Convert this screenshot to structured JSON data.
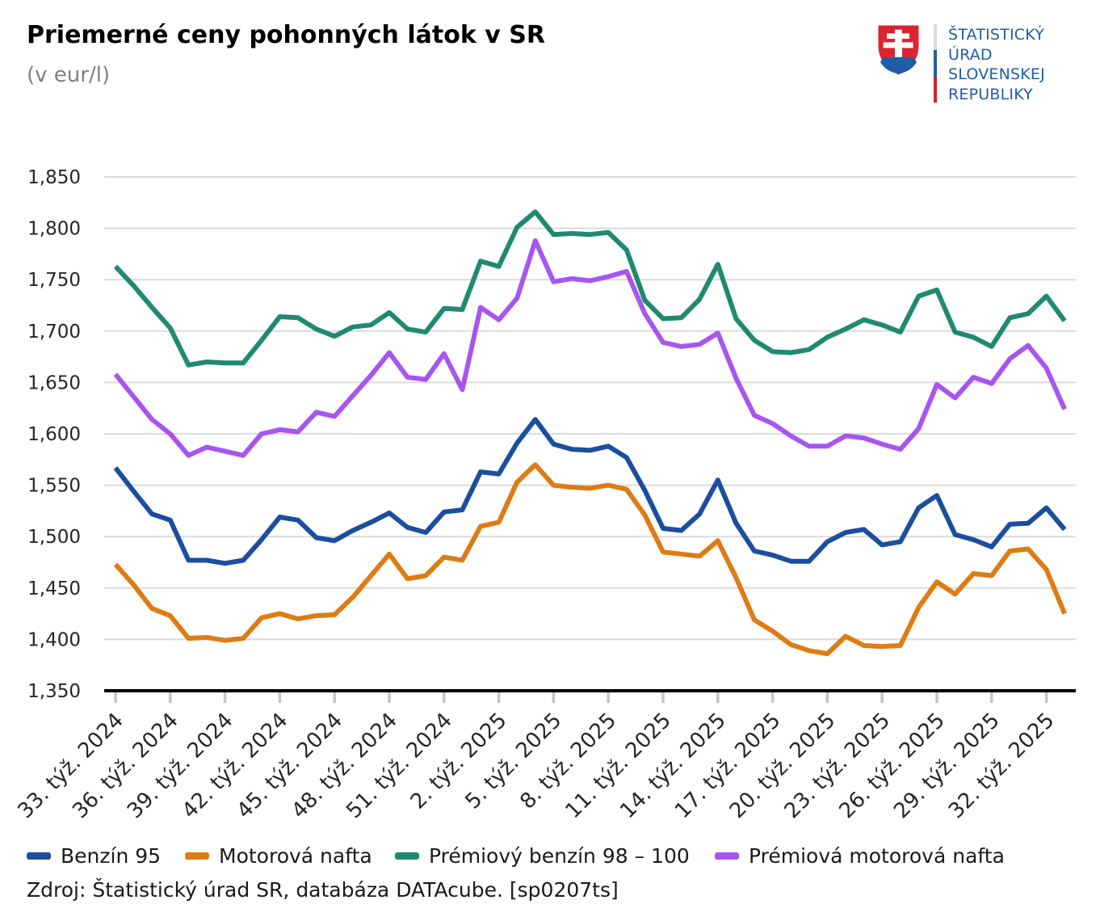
{
  "header": {
    "title": "Priemerné ceny pohonných látok v SR",
    "subtitle": "(v eur/l)"
  },
  "logo": {
    "org_lines": [
      "ŠTATISTICKÝ",
      "ÚRAD",
      "SLOVENSKEJ",
      "REPUBLIKY"
    ],
    "text_color": "#1F5CA9",
    "shield_red": "#DC2430",
    "shield_blue": "#1F5CA8",
    "flag_bar_colors": [
      "#D9D9D9",
      "#2060A8",
      "#D5212E"
    ]
  },
  "chart_data": {
    "type": "line",
    "title": "Priemerné ceny pohonných látok v SR",
    "unit": "(v eur/l)",
    "ylim": [
      1.35,
      1.85
    ],
    "y_tick_step": 0.05,
    "y_tick_labels": [
      "1,350",
      "1,400",
      "1,450",
      "1,500",
      "1,550",
      "1,600",
      "1,650",
      "1,700",
      "1,750",
      "1,800",
      "1,850"
    ],
    "x_tick_every": 3,
    "n_points": 53,
    "x_tick_labels": [
      "33. týž. 2024",
      "36. týž. 2024",
      "39. týž. 2024",
      "42. týž. 2024",
      "45. týž. 2024",
      "48. týž. 2024",
      "51. týž. 2024",
      "2. týž. 2025",
      "5. týž. 2025",
      "8. týž. 2025",
      "11. týž. 2025",
      "14. týž. 2025",
      "17. týž. 2025",
      "20. týž. 2025",
      "23. týž. 2025",
      "26. týž. 2025",
      "29. týž. 2025",
      "32. týž. 2025"
    ],
    "grid": "horizontal",
    "legend_position": "bottom",
    "series": [
      {
        "name": "Benzín 95",
        "color": "#1B4E9E",
        "values": [
          1.567,
          1.544,
          1.522,
          1.516,
          1.477,
          1.477,
          1.474,
          1.477,
          1.497,
          1.519,
          1.516,
          1.499,
          1.496,
          1.506,
          1.514,
          1.523,
          1.509,
          1.504,
          1.524,
          1.526,
          1.563,
          1.561,
          1.591,
          1.614,
          1.59,
          1.585,
          1.584,
          1.588,
          1.577,
          1.545,
          1.508,
          1.506,
          1.522,
          1.555,
          1.513,
          1.486,
          1.482,
          1.476,
          1.476,
          1.495,
          1.504,
          1.507,
          1.492,
          1.495,
          1.528,
          1.54,
          1.502,
          1.497,
          1.49,
          1.512,
          1.513,
          1.528,
          1.507
        ]
      },
      {
        "name": "Motorová nafta",
        "color": "#DE7C14",
        "values": [
          1.473,
          1.453,
          1.43,
          1.423,
          1.401,
          1.402,
          1.399,
          1.401,
          1.421,
          1.425,
          1.42,
          1.423,
          1.424,
          1.441,
          1.462,
          1.483,
          1.459,
          1.462,
          1.48,
          1.477,
          1.51,
          1.514,
          1.553,
          1.57,
          1.55,
          1.548,
          1.547,
          1.55,
          1.546,
          1.521,
          1.485,
          1.483,
          1.481,
          1.496,
          1.46,
          1.419,
          1.408,
          1.395,
          1.389,
          1.386,
          1.403,
          1.394,
          1.393,
          1.394,
          1.431,
          1.456,
          1.444,
          1.464,
          1.462,
          1.486,
          1.488,
          1.468,
          1.425
        ]
      },
      {
        "name": "Prémiový benzín 98 – 100",
        "color": "#1F8A6F",
        "values": [
          1.763,
          1.744,
          1.723,
          1.703,
          1.667,
          1.67,
          1.669,
          1.669,
          1.691,
          1.714,
          1.713,
          1.702,
          1.695,
          1.704,
          1.706,
          1.718,
          1.702,
          1.699,
          1.722,
          1.721,
          1.768,
          1.763,
          1.801,
          1.816,
          1.794,
          1.795,
          1.794,
          1.796,
          1.779,
          1.73,
          1.712,
          1.713,
          1.731,
          1.765,
          1.712,
          1.691,
          1.68,
          1.679,
          1.682,
          1.694,
          1.702,
          1.711,
          1.706,
          1.699,
          1.734,
          1.74,
          1.699,
          1.694,
          1.685,
          1.713,
          1.717,
          1.734,
          1.71
        ]
      },
      {
        "name": "Prémiová motorová nafta",
        "color": "#A855F0",
        "values": [
          1.658,
          1.636,
          1.614,
          1.6,
          1.579,
          1.587,
          1.583,
          1.579,
          1.6,
          1.604,
          1.602,
          1.621,
          1.617,
          1.637,
          1.657,
          1.679,
          1.655,
          1.653,
          1.678,
          1.643,
          1.723,
          1.711,
          1.732,
          1.788,
          1.748,
          1.751,
          1.749,
          1.753,
          1.758,
          1.717,
          1.689,
          1.685,
          1.687,
          1.698,
          1.654,
          1.618,
          1.61,
          1.598,
          1.588,
          1.588,
          1.598,
          1.596,
          1.59,
          1.585,
          1.605,
          1.648,
          1.635,
          1.655,
          1.649,
          1.673,
          1.686,
          1.664,
          1.624
        ]
      }
    ]
  },
  "source": "Zdroj: Štatistický úrad SR, databáza DATAcube. [sp0207ts]"
}
